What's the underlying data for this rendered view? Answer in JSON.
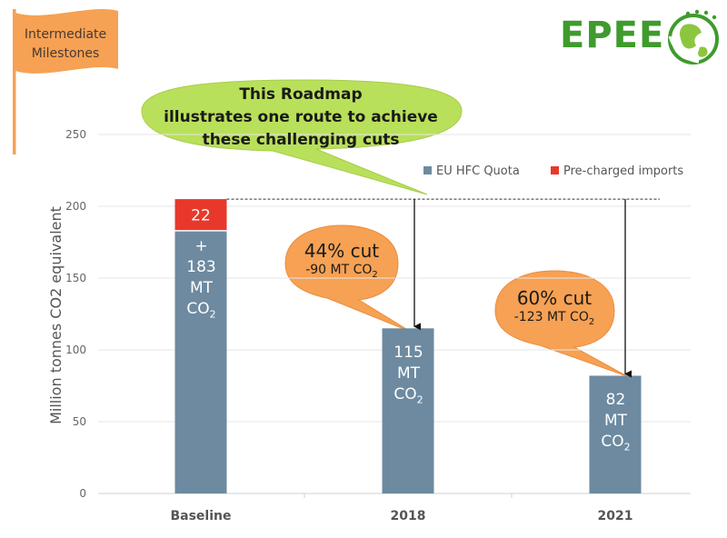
{
  "flag": {
    "line1": "Intermediate",
    "line2": "Milestones",
    "color": "#f6a154"
  },
  "logo": {
    "text": "EPEE",
    "color": "#3f9b2d"
  },
  "callout": {
    "line1": "This Roadmap",
    "line2": "illustrates one route to achieve",
    "line3": "these challenging cuts",
    "color": "#b9e05a"
  },
  "cuts": [
    {
      "main": "44% cut",
      "sub_value": "-90 MT CO",
      "sub_sub": "2"
    },
    {
      "main": "60% cut",
      "sub_value": "-123 MT CO",
      "sub_sub": "2"
    }
  ],
  "bar_labels": {
    "baseline_plus": "+",
    "baseline_value": "183",
    "y2018_value": "115",
    "y2021_value": "82",
    "unit": "MT",
    "co": "CO",
    "sub": "2"
  },
  "chart_data": {
    "type": "bar",
    "stacked": true,
    "categories": [
      "Baseline",
      "2018",
      "2021"
    ],
    "series": [
      {
        "name": "EU HFC Quota",
        "values": [
          183,
          115,
          82
        ],
        "color": "#6d8aa0"
      },
      {
        "name": "Pre-charged imports",
        "values": [
          22,
          0,
          0
        ],
        "color": "#e8382b"
      }
    ],
    "ylabel": "Million tonnes CO2 equivalent",
    "ylim": [
      0,
      250
    ],
    "yticks": [
      0,
      50,
      100,
      150,
      200,
      250
    ],
    "data_labels": {
      "Pre-charged imports": [
        "22"
      ]
    },
    "reference_line": 205,
    "grid": true,
    "legend_position": "top-right"
  }
}
